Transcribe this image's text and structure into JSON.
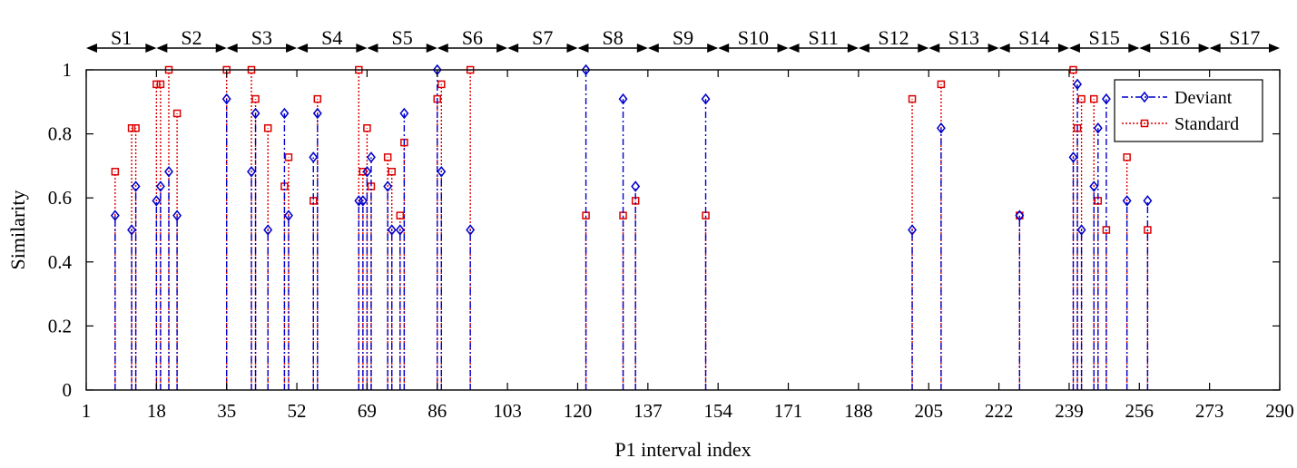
{
  "chart_data": {
    "type": "stem",
    "xlabel": "P1 interval index",
    "ylabel": "Similarity",
    "xlim": [
      1,
      290
    ],
    "ylim": [
      0,
      1
    ],
    "xticks": [
      1,
      18,
      35,
      52,
      69,
      86,
      103,
      120,
      137,
      154,
      171,
      188,
      205,
      222,
      239,
      256,
      273,
      290
    ],
    "xtick_labels": [
      "1",
      "18",
      "35",
      "52",
      "69",
      "86",
      "103",
      "120",
      "137",
      "154",
      "171",
      "188",
      "205",
      "222",
      "239",
      "256",
      "273",
      "290"
    ],
    "yticks": [
      0,
      0.2,
      0.4,
      0.6,
      0.8,
      1
    ],
    "ytick_labels": [
      "0",
      "0.2",
      "0.4",
      "0.6",
      "0.8",
      "1"
    ],
    "grid": false,
    "legend_position": "top-right",
    "segments": [
      {
        "label": "S1",
        "start": 1,
        "end": 18
      },
      {
        "label": "S2",
        "start": 18,
        "end": 35
      },
      {
        "label": "S3",
        "start": 35,
        "end": 52
      },
      {
        "label": "S4",
        "start": 52,
        "end": 69
      },
      {
        "label": "S5",
        "start": 69,
        "end": 86
      },
      {
        "label": "S6",
        "start": 86,
        "end": 103
      },
      {
        "label": "S7",
        "start": 103,
        "end": 120
      },
      {
        "label": "S8",
        "start": 120,
        "end": 137
      },
      {
        "label": "S9",
        "start": 137,
        "end": 154
      },
      {
        "label": "S10",
        "start": 154,
        "end": 171
      },
      {
        "label": "S11",
        "start": 171,
        "end": 188
      },
      {
        "label": "S12",
        "start": 188,
        "end": 205
      },
      {
        "label": "S13",
        "start": 205,
        "end": 222
      },
      {
        "label": "S14",
        "start": 222,
        "end": 239
      },
      {
        "label": "S15",
        "start": 239,
        "end": 256
      },
      {
        "label": "S16",
        "start": 256,
        "end": 273
      },
      {
        "label": "S17",
        "start": 273,
        "end": 290
      }
    ],
    "series": [
      {
        "name": "Deviant",
        "color": "#0000cc",
        "line_style": "dash-dot",
        "marker": "diamond",
        "points": [
          [
            8,
            0.545
          ],
          [
            12,
            0.5
          ],
          [
            13,
            0.636
          ],
          [
            18,
            0.591
          ],
          [
            19,
            0.636
          ],
          [
            21,
            0.682
          ],
          [
            23,
            0.545
          ],
          [
            35,
            0.909
          ],
          [
            41,
            0.682
          ],
          [
            42,
            0.864
          ],
          [
            45,
            0.5
          ],
          [
            49,
            0.864
          ],
          [
            50,
            0.545
          ],
          [
            56,
            0.727
          ],
          [
            57,
            0.864
          ],
          [
            67,
            0.591
          ],
          [
            68,
            0.591
          ],
          [
            69,
            0.682
          ],
          [
            70,
            0.727
          ],
          [
            74,
            0.636
          ],
          [
            75,
            0.5
          ],
          [
            77,
            0.5
          ],
          [
            78,
            0.864
          ],
          [
            86,
            1.0
          ],
          [
            87,
            0.682
          ],
          [
            94,
            0.5
          ],
          [
            122,
            1.0
          ],
          [
            131,
            0.909
          ],
          [
            134,
            0.636
          ],
          [
            151,
            0.909
          ],
          [
            201,
            0.5
          ],
          [
            208,
            0.818
          ],
          [
            227,
            0.545
          ],
          [
            240,
            0.727
          ],
          [
            241,
            0.955
          ],
          [
            242,
            0.5
          ],
          [
            245,
            0.636
          ],
          [
            246,
            0.818
          ],
          [
            248,
            0.909
          ],
          [
            253,
            0.591
          ],
          [
            258,
            0.591
          ]
        ]
      },
      {
        "name": "Standard",
        "color": "#dd0000",
        "line_style": "dotted",
        "marker": "square",
        "points": [
          [
            8,
            0.682
          ],
          [
            12,
            0.818
          ],
          [
            13,
            0.818
          ],
          [
            18,
            0.955
          ],
          [
            19,
            0.955
          ],
          [
            21,
            1.0
          ],
          [
            23,
            0.864
          ],
          [
            35,
            1.0
          ],
          [
            41,
            1.0
          ],
          [
            42,
            0.909
          ],
          [
            45,
            0.818
          ],
          [
            49,
            0.636
          ],
          [
            50,
            0.727
          ],
          [
            56,
            0.591
          ],
          [
            57,
            0.909
          ],
          [
            67,
            1.0
          ],
          [
            68,
            0.682
          ],
          [
            69,
            0.818
          ],
          [
            70,
            0.636
          ],
          [
            74,
            0.727
          ],
          [
            75,
            0.682
          ],
          [
            77,
            0.545
          ],
          [
            78,
            0.773
          ],
          [
            86,
            0.909
          ],
          [
            87,
            0.955
          ],
          [
            94,
            1.0
          ],
          [
            122,
            0.545
          ],
          [
            131,
            0.545
          ],
          [
            134,
            0.591
          ],
          [
            151,
            0.545
          ],
          [
            201,
            0.909
          ],
          [
            208,
            0.955
          ],
          [
            227,
            0.545
          ],
          [
            240,
            1.0
          ],
          [
            241,
            0.818
          ],
          [
            242,
            0.909
          ],
          [
            245,
            0.909
          ],
          [
            246,
            0.591
          ],
          [
            248,
            0.5
          ],
          [
            253,
            0.727
          ],
          [
            258,
            0.5
          ]
        ]
      }
    ]
  }
}
